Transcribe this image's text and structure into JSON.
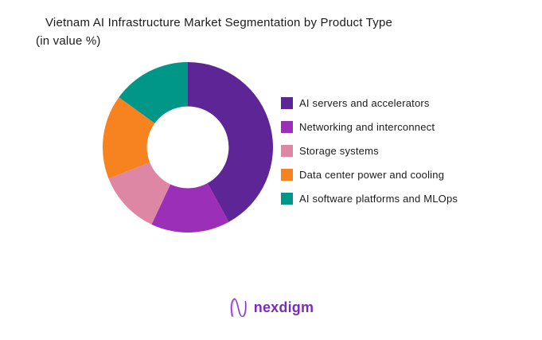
{
  "title": {
    "line1": "Vietnam AI Infrastructure Market Segmentation by Product Type",
    "line2": "(in value %)"
  },
  "chart_data": {
    "type": "pie",
    "subtype": "donut",
    "title": "Vietnam AI Infrastructure Market Segmentation by Product Type (in value %)",
    "unit": "value %",
    "start_angle_deg": 0,
    "direction": "clockwise",
    "hole_ratio": 0.48,
    "legend_position": "right",
    "data_labels_visible": false,
    "segments": [
      {
        "label": "AI servers and accelerators",
        "value": 42,
        "color": "#5E2596"
      },
      {
        "label": "Networking and interconnect",
        "value": 15,
        "color": "#9C2FB8"
      },
      {
        "label": "Storage systems",
        "value": 12,
        "color": "#DE87A5"
      },
      {
        "label": "Data center power and cooling",
        "value": 16,
        "color": "#F6831F"
      },
      {
        "label": "AI software platforms and MLOps",
        "value": 15,
        "color": "#009688"
      }
    ]
  },
  "footer": {
    "logo_text": "nexdigm",
    "logo_color": "#7a2bc4"
  }
}
